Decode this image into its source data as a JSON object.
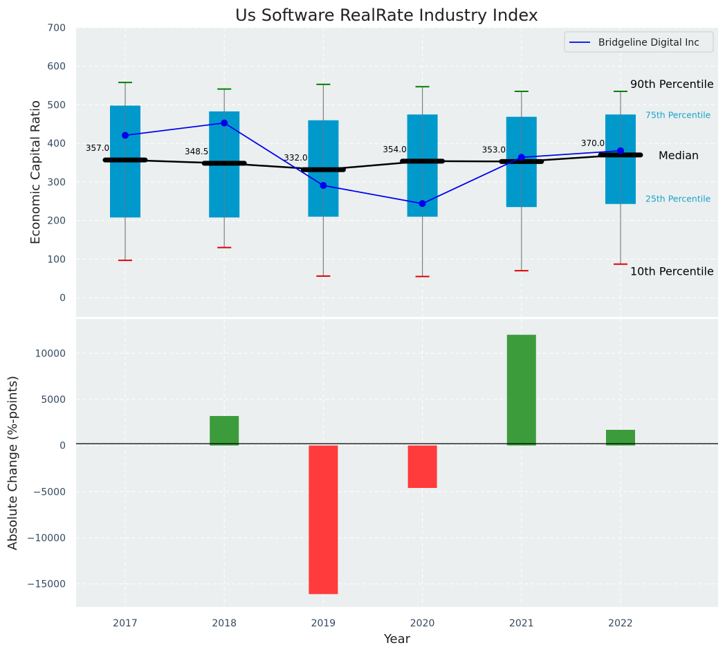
{
  "chart_data": [
    {
      "type": "box",
      "title": "Us Software RealRate Industry Index",
      "ylabel": "Economic Capital Ratio",
      "ylim": [
        -50,
        700
      ],
      "yticks": [
        0,
        100,
        200,
        300,
        400,
        500,
        600,
        700
      ],
      "categories": [
        "2017",
        "2018",
        "2019",
        "2020",
        "2021",
        "2022"
      ],
      "percentiles": {
        "p10": [
          97,
          130,
          56,
          55,
          70,
          87
        ],
        "p25": [
          208,
          208,
          210,
          210,
          235,
          243
        ],
        "median": [
          357.0,
          348.5,
          332.0,
          354.0,
          353.0,
          370.0
        ],
        "p75": [
          498,
          483,
          460,
          475,
          469,
          475
        ],
        "p90": [
          558,
          541,
          553,
          547,
          535,
          535
        ]
      },
      "median_labels": [
        "357.0",
        "348.5",
        "332.0",
        "354.0",
        "353.0",
        "370.0"
      ],
      "series": [
        {
          "name": "Bridgeline Digital Inc",
          "values": [
            421,
            453,
            291,
            244,
            364,
            381
          ],
          "color": "#0000ee"
        }
      ],
      "annotations": {
        "p90": "90th Percentile",
        "p75": "75th Percentile",
        "median": "Median",
        "p25": "25th Percentile",
        "p10": "10th Percentile"
      },
      "legend_position": "top-right",
      "grid": true,
      "colors": {
        "box": "#0099cc",
        "median": "#000000",
        "p90_cap": "#008000",
        "p10_cap": "#e00000",
        "background": "#ebeff0"
      }
    },
    {
      "type": "bar",
      "xlabel": "Year",
      "ylabel": "Absolute Change (%-points)",
      "ylim": [
        -17500,
        13700
      ],
      "yticks": [
        -15000,
        -10000,
        -5000,
        0,
        5000,
        10000
      ],
      "ytick_labels": [
        "−15000",
        "−10000",
        "−5000",
        "0",
        "5000",
        "10000"
      ],
      "categories": [
        "2017",
        "2018",
        "2019",
        "2020",
        "2021",
        "2022"
      ],
      "values": [
        0,
        3200,
        -16100,
        -4600,
        12000,
        1700
      ],
      "grid": true,
      "colors": {
        "positive": "#3c9c3c",
        "negative": "#ff3b3b",
        "background": "#ebeff0"
      }
    }
  ]
}
